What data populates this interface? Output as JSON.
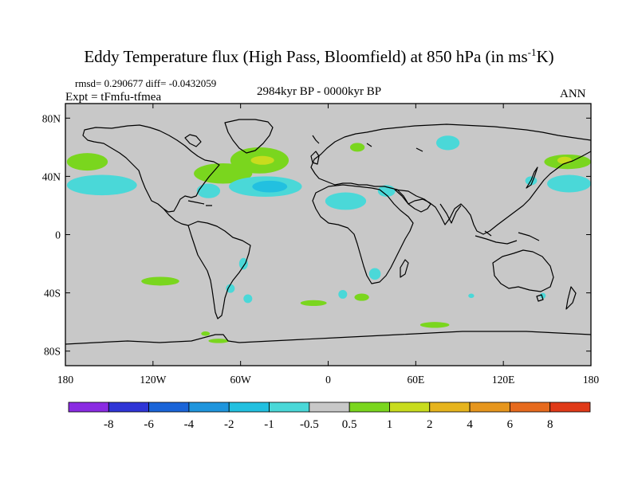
{
  "title": {
    "main": "Eddy Temperature flux (High Pass, Bloomfield) at 850 hPa (in ms",
    "sup": "-1",
    "end": "K)"
  },
  "stats": "rmsd= 0.290677 diff= -0.0432059",
  "expt": "Expt = tFmfu-tfmea",
  "period": "2984kyr BP - 0000kyr BP",
  "season": "ANN",
  "chart_data": {
    "type": "heatmap",
    "projection": "cylindrical-equidistant",
    "xlim": [
      -180,
      180
    ],
    "ylim": [
      -90,
      90
    ],
    "x_ticks": [
      {
        "value": -180,
        "label": "180"
      },
      {
        "value": -120,
        "label": "120W"
      },
      {
        "value": -60,
        "label": "60W"
      },
      {
        "value": 0,
        "label": "0"
      },
      {
        "value": 60,
        "label": "60E"
      },
      {
        "value": 120,
        "label": "120E"
      },
      {
        "value": 180,
        "label": "180"
      }
    ],
    "y_ticks": [
      {
        "value": 80,
        "label": "80N"
      },
      {
        "value": 40,
        "label": "40N"
      },
      {
        "value": 0,
        "label": "0"
      },
      {
        "value": -40,
        "label": "40S"
      },
      {
        "value": -80,
        "label": "80S"
      }
    ],
    "colorbar": {
      "colors": [
        "#8a2be2",
        "#2f35d6",
        "#1a64d8",
        "#1f95dd",
        "#22c0e0",
        "#4ad8d8",
        "#c8c8c8",
        "#7ad61e",
        "#c8dc1e",
        "#e6b41e",
        "#e6961e",
        "#e66a1e",
        "#e03a18"
      ],
      "boundaries": [
        "-8",
        "-6",
        "-4",
        "-2",
        "-1",
        "-0.5",
        "0.5",
        "1",
        "2",
        "4",
        "6",
        "8"
      ]
    },
    "background_color": "#c8c8c8",
    "regions": [
      {
        "name": "north-pacific-west-positive",
        "color": "#7ad61e",
        "lon": -165,
        "lat": 50,
        "rlon": 14,
        "rlat": 6
      },
      {
        "name": "north-pacific-negative",
        "color": "#4ad8d8",
        "lon": -155,
        "lat": 34,
        "rlon": 24,
        "rlat": 7
      },
      {
        "name": "north-america-positive",
        "color": "#7ad61e",
        "lon": -72,
        "lat": 42,
        "rlon": 20,
        "rlat": 7
      },
      {
        "name": "north-atlantic-positive",
        "color": "#7ad61e",
        "lon": -47,
        "lat": 51,
        "rlon": 20,
        "rlat": 9
      },
      {
        "name": "north-atlantic-positive-core",
        "color": "#c8dc1e",
        "lon": -45,
        "lat": 51,
        "rlon": 8,
        "rlat": 3
      },
      {
        "name": "north-atlantic-negative",
        "color": "#4ad8d8",
        "lon": -43,
        "lat": 33,
        "rlon": 25,
        "rlat": 7
      },
      {
        "name": "north-atlantic-negative-core",
        "color": "#22c0e0",
        "lon": -40,
        "lat": 33,
        "rlon": 12,
        "rlat": 4
      },
      {
        "name": "west-atlantic-negative",
        "color": "#4ad8d8",
        "lon": -82,
        "lat": 30,
        "rlon": 8,
        "rlat": 5
      },
      {
        "name": "north-africa-negative",
        "color": "#4ad8d8",
        "lon": 12,
        "lat": 23,
        "rlon": 14,
        "rlat": 6
      },
      {
        "name": "arabia-negative",
        "color": "#4ad8d8",
        "lon": 40,
        "lat": 30,
        "rlon": 6,
        "rlat": 4
      },
      {
        "name": "scandinavia-positive",
        "color": "#7ad61e",
        "lon": 20,
        "lat": 60,
        "rlon": 5,
        "rlat": 3
      },
      {
        "name": "north-russia-negative",
        "color": "#4ad8d8",
        "lon": 82,
        "lat": 63,
        "rlon": 8,
        "rlat": 5
      },
      {
        "name": "japan-negative",
        "color": "#4ad8d8",
        "lon": 139,
        "lat": 37,
        "rlon": 4,
        "rlat": 3
      },
      {
        "name": "north-west-pacific-negative",
        "color": "#4ad8d8",
        "lon": 165,
        "lat": 35,
        "rlon": 15,
        "rlat": 6
      },
      {
        "name": "north-west-pacific-positive",
        "color": "#7ad61e",
        "lon": 164,
        "lat": 50,
        "rlon": 16,
        "rlat": 5
      },
      {
        "name": "north-west-pacific-positive-core",
        "color": "#c8dc1e",
        "lon": 162,
        "lat": 51,
        "rlon": 5,
        "rlat": 2.5
      },
      {
        "name": "south-america-negative",
        "color": "#4ad8d8",
        "lon": -58,
        "lat": -20,
        "rlon": 3,
        "rlat": 4
      },
      {
        "name": "south-pacific-positive",
        "color": "#7ad61e",
        "lon": -115,
        "lat": -32,
        "rlon": 13,
        "rlat": 3
      },
      {
        "name": "south-pacific-negative",
        "color": "#4ad8d8",
        "lon": -67,
        "lat": -37,
        "rlon": 3,
        "rlat": 3
      },
      {
        "name": "argentina-negative",
        "color": "#4ad8d8",
        "lon": -55,
        "lat": -44,
        "rlon": 3,
        "rlat": 3
      },
      {
        "name": "south-atlantic-positive",
        "color": "#7ad61e",
        "lon": -10,
        "lat": -47,
        "rlon": 9,
        "rlat": 2
      },
      {
        "name": "south-africa-negative",
        "color": "#4ad8d8",
        "lon": 32,
        "lat": -27,
        "rlon": 4,
        "rlat": 4
      },
      {
        "name": "south-indian-negative",
        "color": "#4ad8d8",
        "lon": 10,
        "lat": -41,
        "rlon": 3,
        "rlat": 3
      },
      {
        "name": "south-indian-positive",
        "color": "#7ad61e",
        "lon": 23,
        "lat": -43,
        "rlon": 5,
        "rlat": 2.5
      },
      {
        "name": "southern-ocean-positive",
        "color": "#7ad61e",
        "lon": 73,
        "lat": -62,
        "rlon": 10,
        "rlat": 2
      },
      {
        "name": "australia-south-negative",
        "color": "#4ad8d8",
        "lon": 147,
        "lat": -42,
        "rlon": 2,
        "rlat": 2
      },
      {
        "name": "south-indian-small-negative",
        "color": "#4ad8d8",
        "lon": 98,
        "lat": -42,
        "rlon": 2,
        "rlat": 1.5
      },
      {
        "name": "south-pacific-small-positive",
        "color": "#7ad61e",
        "lon": -84,
        "lat": -68,
        "rlon": 3,
        "rlat": 1.5
      },
      {
        "name": "antarctic-peninsula-positive",
        "color": "#7ad61e",
        "lon": -75,
        "lat": -73,
        "rlon": 7,
        "rlat": 1.5
      }
    ]
  }
}
